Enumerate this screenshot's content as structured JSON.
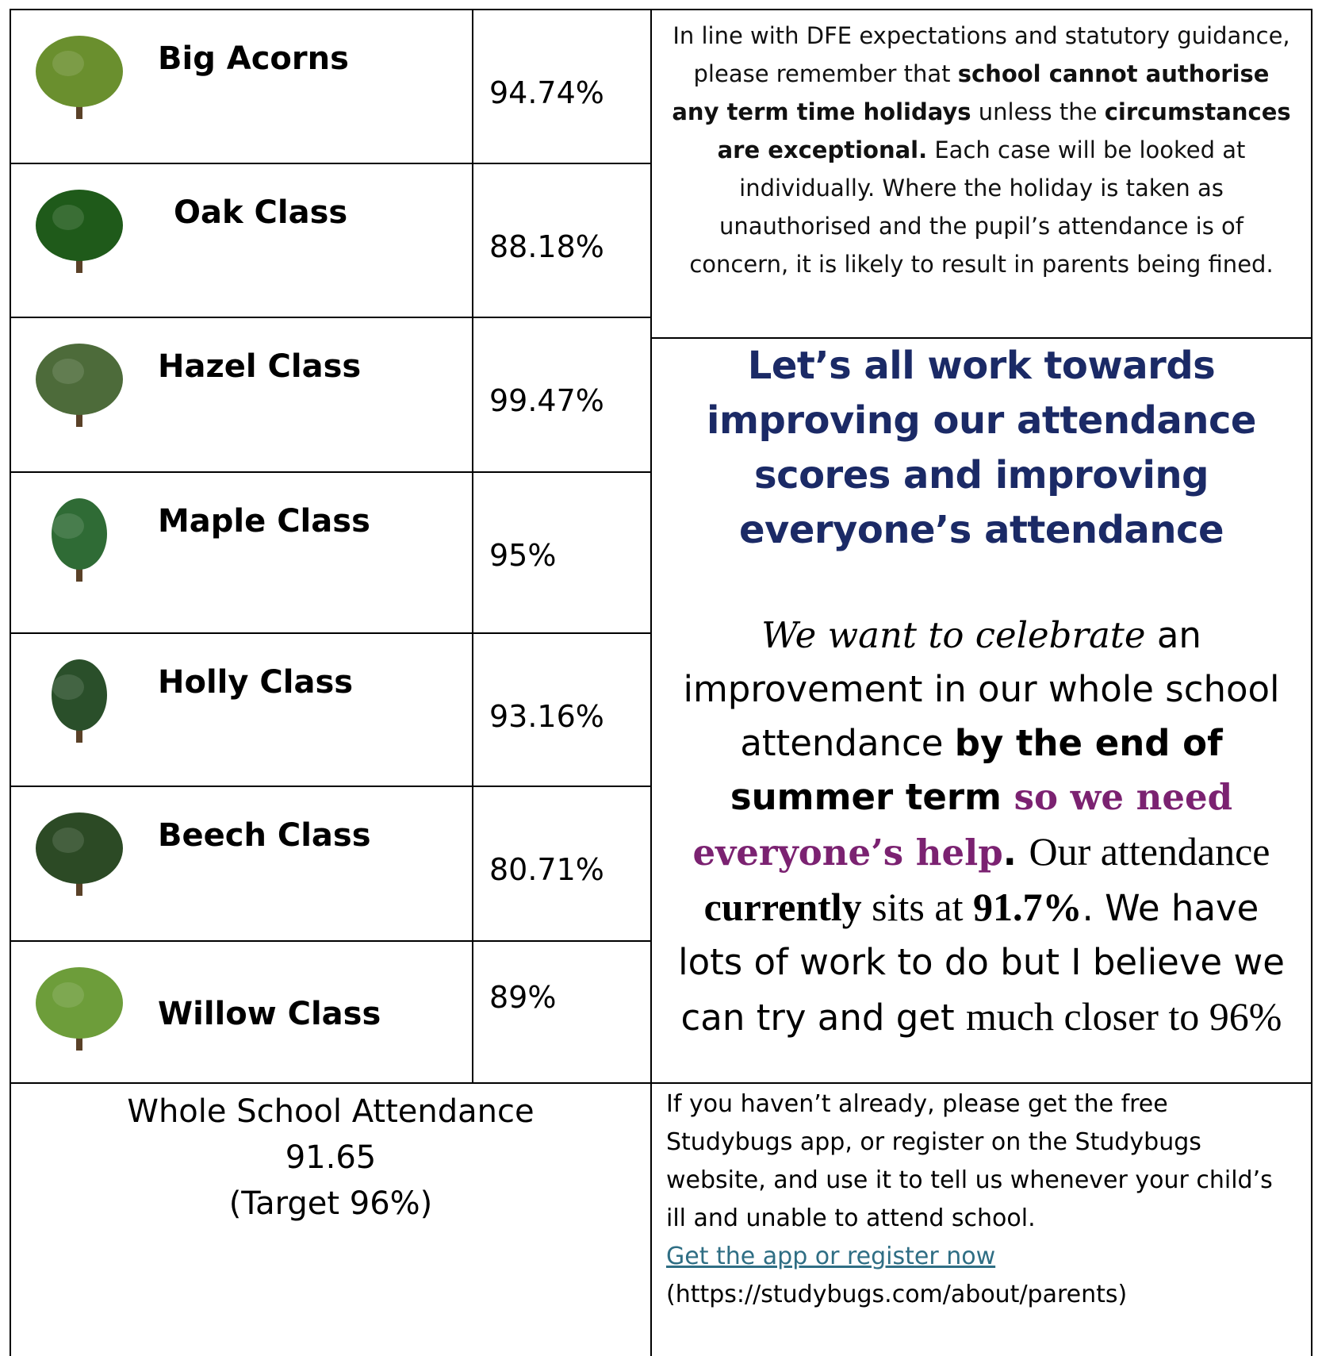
{
  "classes": [
    {
      "name": "Big Acorns",
      "attendance": "94.74%"
    },
    {
      "name": "Oak Class",
      "attendance": "88.18%"
    },
    {
      "name": "Hazel Class",
      "attendance": "99.47%"
    },
    {
      "name": "Maple Class",
      "attendance": "95%"
    },
    {
      "name": "Holly Class",
      "attendance": "93.16%"
    },
    {
      "name": "Beech Class",
      "attendance": "80.71%"
    },
    {
      "name": "Willow Class",
      "attendance": "89%"
    }
  ],
  "notice": [
    {
      "text": "In line with DFE expectations and statutory guidance, please remember that ",
      "style": "normal"
    },
    {
      "text": "school cannot authorise any term time holidays",
      "style": "bold"
    },
    {
      "text": " unless the ",
      "style": "normal"
    },
    {
      "text": "circumstances are exceptional.",
      "style": "bold"
    },
    {
      "text": " Each case will be looked at individually. Where the holiday is taken as unauthorised and the pupil’s attendance is of concern, it is likely to result in parents being fined.",
      "style": "normal"
    }
  ],
  "campaign": {
    "heading": "Let’s all work towards improving our attendance scores and improving everyone’s attendance",
    "message": [
      {
        "text": "We want to celebrate",
        "style": "fancy"
      },
      {
        "text": " an improvement in our whole school attendance ",
        "style": "normal"
      },
      {
        "text": "by the end of summer term ",
        "style": "bold"
      },
      {
        "text": "so we need everyone’s help",
        "style": "purple"
      },
      {
        "text": ". ",
        "style": "bold"
      },
      {
        "text": "Our attendance ",
        "style": "serif"
      },
      {
        "text": "currently",
        "style": "serif-bold"
      },
      {
        "text": " sits at ",
        "style": "serif"
      },
      {
        "text": "91.7%",
        "style": "serif-bold"
      },
      {
        "text": ". We have lots of work to do but I believe we can try and get ",
        "style": "normal"
      },
      {
        "text": "much closer to 96%",
        "style": "serif"
      }
    ]
  },
  "whole_school": {
    "label": "Whole School Attendance",
    "value": "91.65",
    "target": "(Target 96%)"
  },
  "studybugs": {
    "text": "If you haven’t already, please get the free Studybugs app, or register on the Studybugs website, and use it to tell us whenever your child’s ill and unable to attend school.",
    "link": "Get the app or register now",
    "url": "(https://studybugs.com/about/parents)"
  }
}
